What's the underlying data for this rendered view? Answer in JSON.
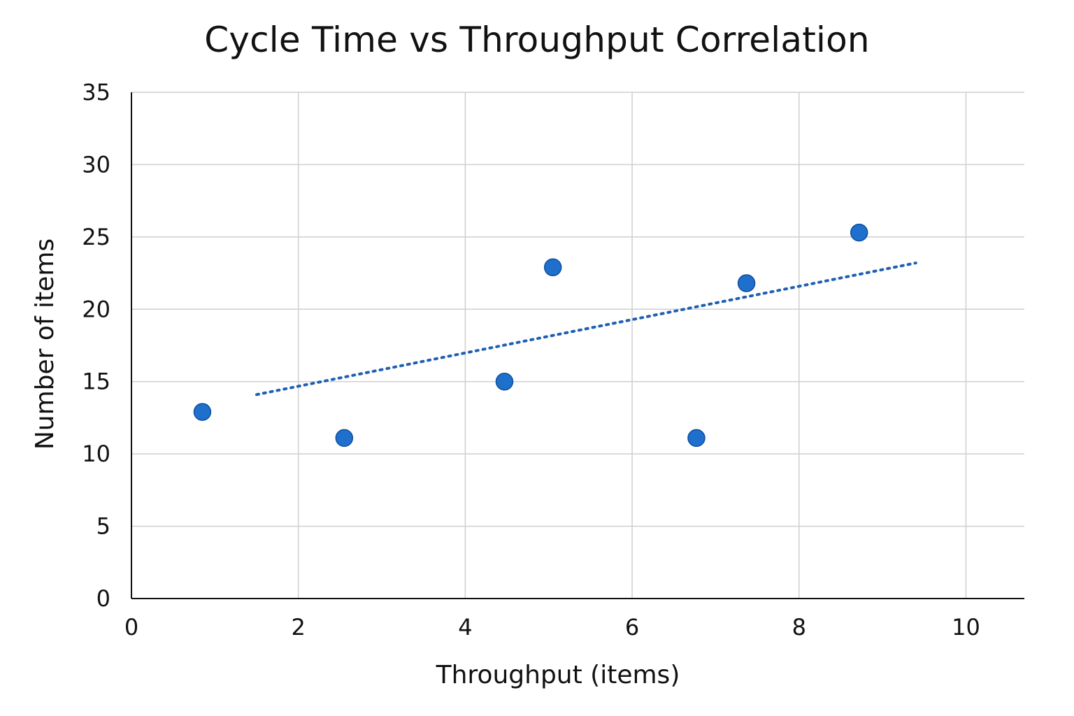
{
  "chart_data": {
    "type": "scatter",
    "title": "Cycle Time vs Throughput Correlation",
    "xlabel": "Throughput (items)",
    "ylabel": "Number of items",
    "xlim": [
      0,
      10.7
    ],
    "ylim": [
      0,
      35
    ],
    "xticks": [
      0,
      2,
      4,
      6,
      8,
      10
    ],
    "yticks": [
      0,
      5,
      10,
      15,
      20,
      25,
      30,
      35
    ],
    "grid": true,
    "series": [
      {
        "x": [
          0.85,
          2.55,
          4.47,
          5.05,
          6.77,
          7.37,
          8.72
        ],
        "y": [
          12.9,
          11.1,
          15.0,
          22.9,
          11.1,
          21.8,
          25.3
        ]
      }
    ],
    "trendline": {
      "style": "dotted",
      "x": [
        1.5,
        9.4
      ],
      "y": [
        14.1,
        23.2
      ]
    },
    "colors": {
      "point": "#1f6fcc",
      "trendline": "#1f5fb4"
    }
  }
}
